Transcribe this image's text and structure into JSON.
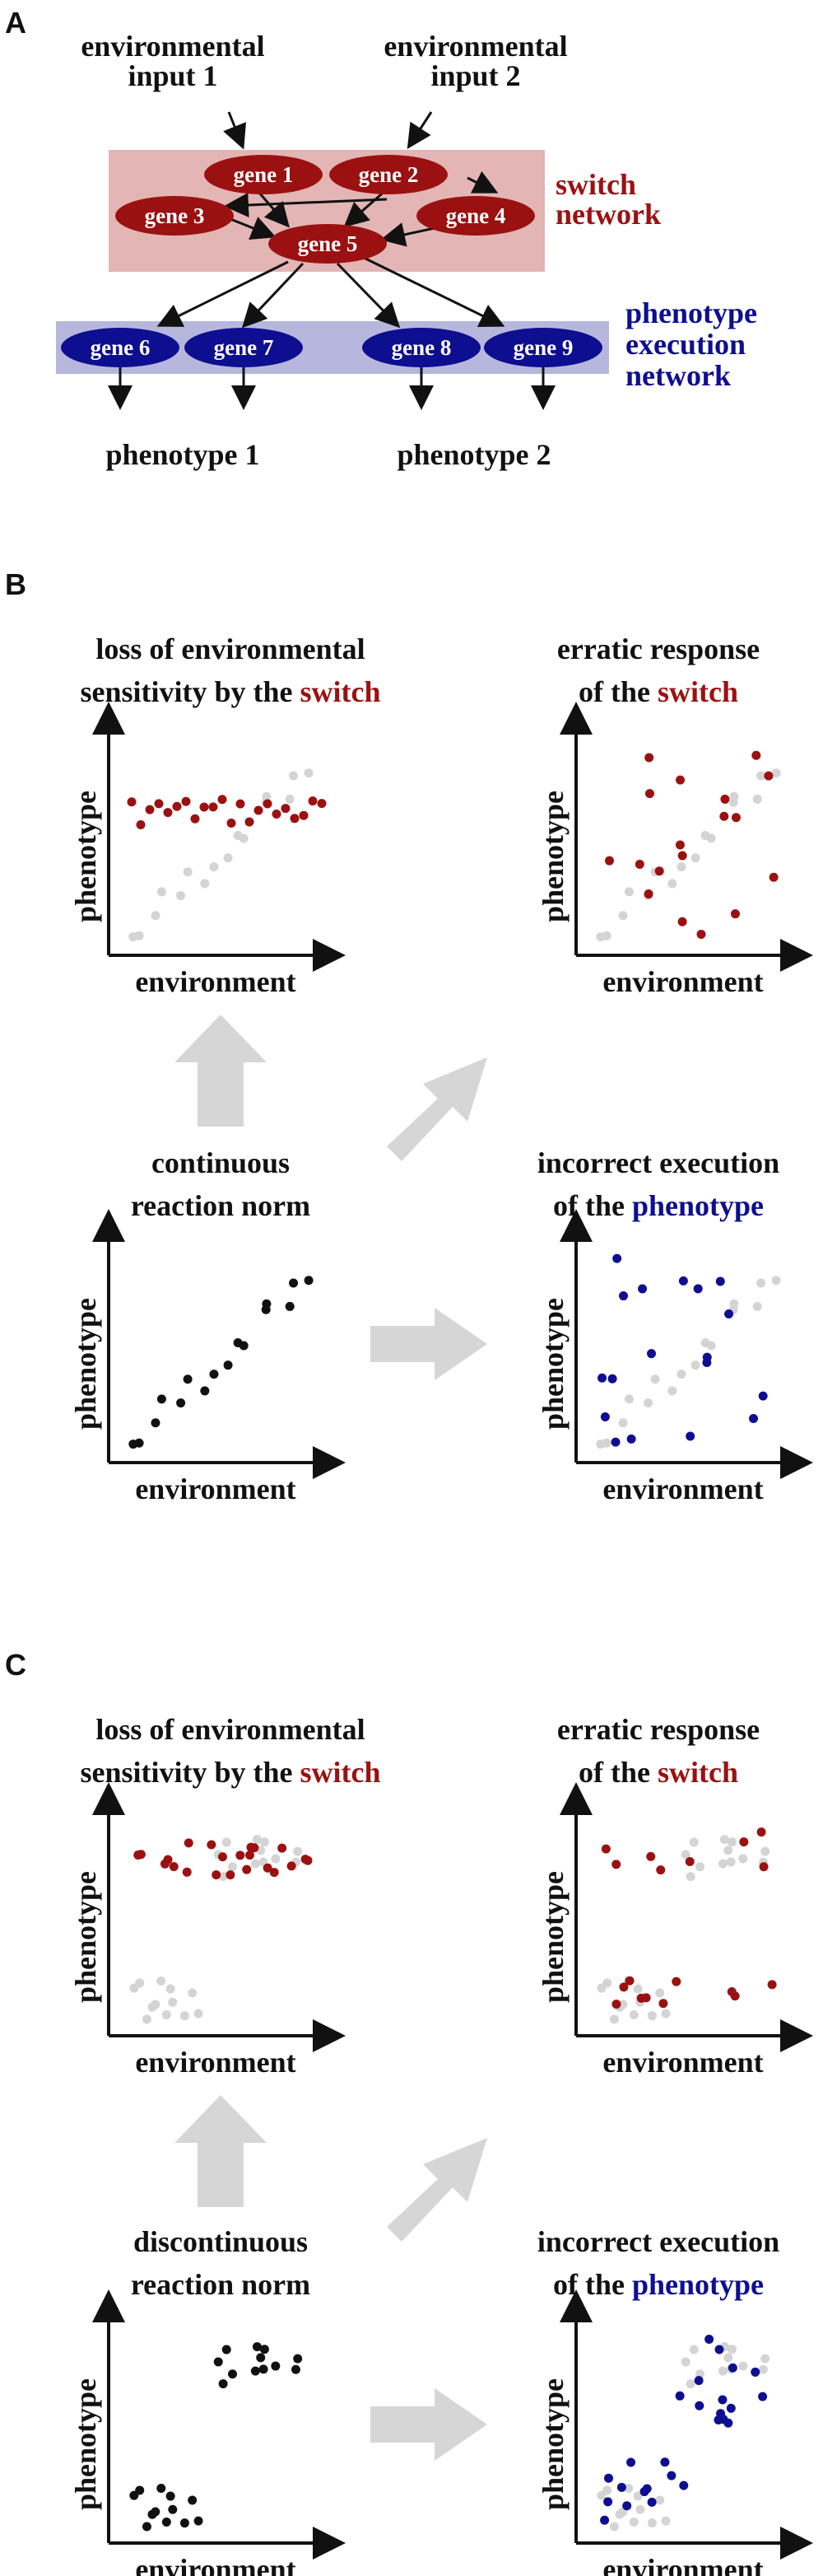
{
  "colors": {
    "switch": "#9b1111",
    "execution": "#0e0e91",
    "switch_band": "#e3b5b5",
    "execution_band": "#b7b7dd",
    "ghost": "#d4d4d4",
    "arrow_block": "#d6d6d6",
    "ink": "#111111"
  },
  "panel_a": {
    "letter": "A",
    "inputs": [
      {
        "line1": "environmental",
        "line2": "input 1"
      },
      {
        "line1": "environmental",
        "line2": "input 2"
      }
    ],
    "switch_label": [
      "switch",
      "network"
    ],
    "execution_label": [
      "phenotype",
      "execution",
      "network"
    ],
    "switch_genes": [
      "gene 1",
      "gene 2",
      "gene 3",
      "gene 4",
      "gene 5"
    ],
    "execution_genes": [
      "gene 6",
      "gene 7",
      "gene 8",
      "gene 9"
    ],
    "phenotypes": [
      "phenotype 1",
      "phenotype 2"
    ]
  },
  "panel_b": {
    "letter": "B",
    "top_left_title": {
      "line1": "loss of environmental",
      "line2_pre": "sensitivity by the ",
      "line2_em": "switch"
    },
    "top_right_title": {
      "line1": "erratic response",
      "line2_pre": "of the ",
      "line2_em": "switch"
    },
    "center_title": {
      "line1": "continuous",
      "line2": "reaction norm"
    },
    "bottom_right_title": {
      "line1": "incorrect execution",
      "line2_pre": "of the ",
      "line2_em": "phenotype"
    }
  },
  "panel_c": {
    "letter": "C",
    "top_left_title": {
      "line1": "loss of environmental",
      "line2_pre": "sensitivity by the ",
      "line2_em": "switch"
    },
    "top_right_title": {
      "line1": "erratic response",
      "line2_pre": "of the ",
      "line2_em": "switch"
    },
    "center_title": {
      "line1": "discontinuous",
      "line2": "reaction norm"
    },
    "bottom_right_title": {
      "line1": "incorrect execution",
      "line2_pre": "of the ",
      "line2_em": "phenotype"
    }
  },
  "axes": {
    "x": "environment",
    "y": "phenotype"
  }
}
